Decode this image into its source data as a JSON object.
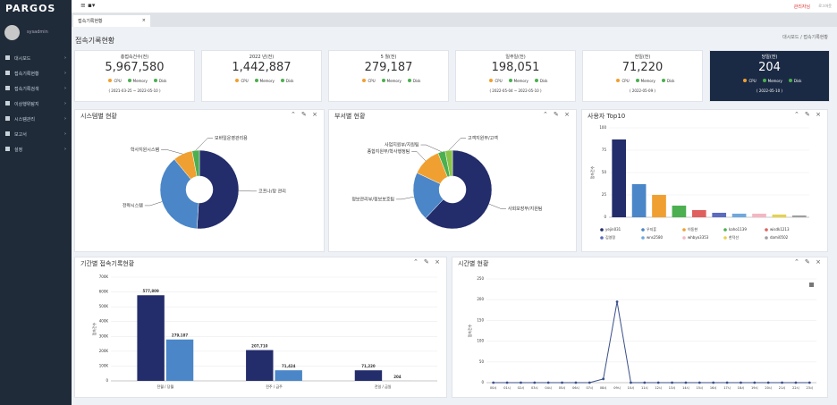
{
  "header": {
    "logo": "PARGOS",
    "user": "관리자님",
    "logout": "로그아웃"
  },
  "sidebar": {
    "username": "sysadmin",
    "menu": [
      "대시보드",
      "접속기록현황",
      "접속기록검색",
      "이상행위탐지",
      "시스템관리",
      "보고서",
      "설정"
    ]
  },
  "tab": "접속기록현황",
  "page": {
    "title": "접속기록현황",
    "breadcrumb": [
      "대시보드",
      "접속기록현황"
    ]
  },
  "status_legend": [
    {
      "name": "CPU",
      "color": "#f0a030"
    },
    {
      "name": "Memory",
      "color": "#4caf50"
    },
    {
      "name": "Disk",
      "color": "#4caf50"
    }
  ],
  "stats": [
    {
      "label": "총접속건수(전)",
      "value": "5,967,580",
      "range": "( 2021-03-25 ~ 2022-05-10 )"
    },
    {
      "label": "2022 년(전)",
      "value": "1,442,887"
    },
    {
      "label": "5 월(전)",
      "value": "279,187"
    },
    {
      "label": "일주일(전)",
      "value": "198,051",
      "range": "( 2022-05-04 ~ 2022-05-10 )"
    },
    {
      "label": "전일(전)",
      "value": "71,220",
      "range": "( 2022-05-09 )"
    },
    {
      "label": "당일(전)",
      "value": "204",
      "range": "( 2022-05-10 )"
    }
  ],
  "charts": [
    {
      "type": "pie",
      "title": "시스템별 현황",
      "categories": [
        "코프나/망 관리",
        "전략시스템",
        "학사지원시스템",
        "모바일운영관리용"
      ],
      "values": [
        51,
        38,
        8,
        3
      ],
      "colors": [
        "#232d6b",
        "#4a86c8",
        "#f0a030",
        "#4caf50"
      ]
    },
    {
      "type": "pie",
      "title": "부서별 현황",
      "categories": [
        "사회보장부/지원팀",
        "정보관리부/정보보호팀",
        "종합지원부/학사행정팀",
        "사업지원부/지원팀",
        "고객지원부/고객"
      ],
      "values": [
        62,
        20,
        12,
        3,
        3
      ],
      "colors": [
        "#232d6b",
        "#4a86c8",
        "#f0a030",
        "#4caf50",
        "#8bc34a"
      ]
    },
    {
      "type": "bar",
      "title": "사용자 Top10",
      "y_label": "접속건수",
      "categories": [
        "yejin031",
        "우지훈",
        "이동현",
        "kaho1139",
        "wisdk1213",
        "김영정",
        "wns2580",
        "whbyo3353",
        "한덕선",
        "dami0502"
      ],
      "values": [
        87,
        37,
        25,
        13,
        8,
        5,
        4,
        4,
        3,
        2
      ],
      "colors": [
        "#232d6b",
        "#4a86c8",
        "#f0a030",
        "#4caf50",
        "#e06060",
        "#5b6bc0",
        "#6fa8dc",
        "#f4b6c2",
        "#e6d24a",
        "#9e9e9e"
      ],
      "ylim": [
        0,
        100
      ],
      "yticks": [
        0,
        25,
        50,
        75,
        100
      ]
    },
    {
      "type": "grouped_bar",
      "title": "기간별 접속기록현황",
      "y_label": "접속건수",
      "categories": [
        "전월 / 당월",
        "전주 / 금주",
        "전일 / 금일"
      ],
      "series": [
        {
          "color": "#232d6b",
          "values": [
            577809,
            207710,
            71220
          ],
          "value_labels": [
            "577,809",
            "207,710",
            "71,220"
          ]
        },
        {
          "color": "#4a86c8",
          "values": [
            279187,
            71424,
            204
          ],
          "value_labels": [
            "279,187",
            "71,424",
            "204"
          ]
        }
      ],
      "ylim": [
        0,
        700000
      ],
      "yticks": [
        0,
        {
          "value": 100000,
          "label": "100K"
        },
        {
          "value": 200000,
          "label": "200K"
        },
        {
          "value": 300000,
          "label": "300K"
        },
        {
          "value": 400000,
          "label": "400K"
        },
        {
          "value": 500000,
          "label": "500K"
        },
        {
          "value": 600000,
          "label": "600K"
        },
        {
          "value": 700000,
          "label": "700K"
        }
      ]
    },
    {
      "type": "line",
      "title": "시간별 현황",
      "y_label": "접속건수",
      "categories": [
        "00시",
        "01시",
        "02시",
        "03시",
        "04시",
        "05시",
        "06시",
        "07시",
        "08시",
        "09시",
        "10시",
        "11시",
        "12시",
        "13시",
        "14시",
        "15시",
        "16시",
        "17시",
        "18시",
        "19시",
        "20시",
        "21시",
        "22시",
        "23시"
      ],
      "values": [
        0,
        0,
        0,
        0,
        0,
        0,
        0,
        0,
        9,
        195,
        0,
        0,
        0,
        0,
        0,
        0,
        0,
        0,
        0,
        0,
        0,
        0,
        0,
        0
      ],
      "color": "#3a4f8a",
      "ylim": [
        0,
        250
      ],
      "yticks": [
        0,
        50,
        100,
        150,
        200,
        250
      ]
    }
  ]
}
